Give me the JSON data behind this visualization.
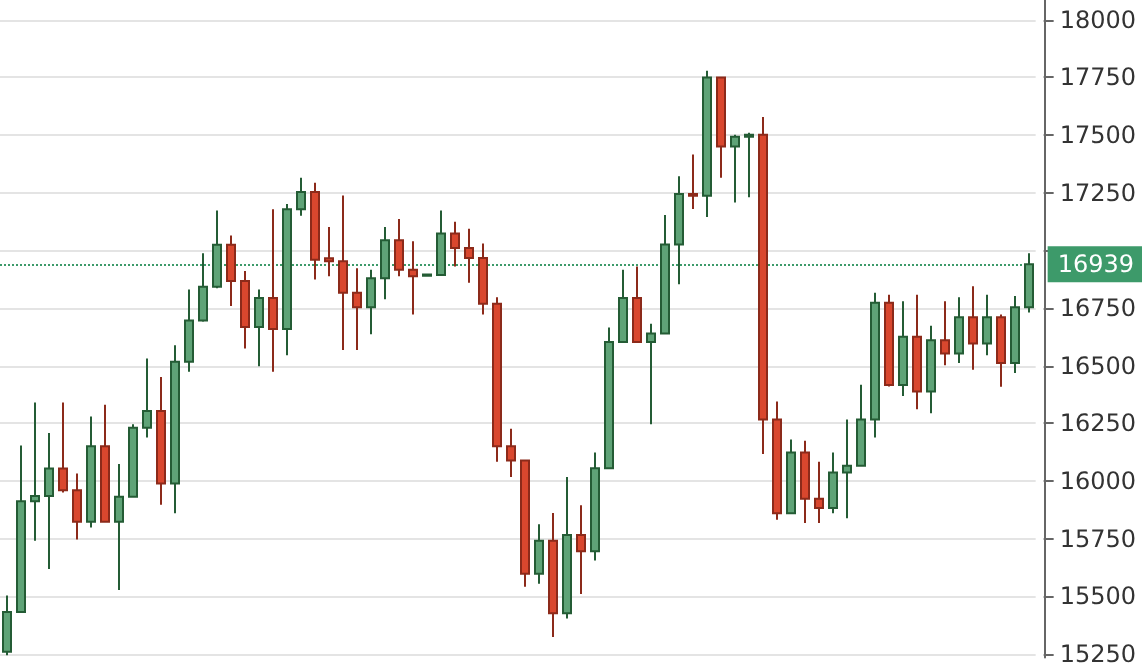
{
  "chart_data": {
    "type": "candlestick",
    "categories": [
      null,
      null,
      null,
      null,
      null,
      null,
      null,
      null,
      null,
      null,
      null,
      null,
      null,
      null,
      null,
      null,
      null,
      null,
      null,
      null,
      null,
      null,
      null,
      null,
      null,
      null,
      null,
      null,
      null,
      null,
      null,
      null,
      null,
      null,
      null,
      null,
      null,
      null,
      null,
      null,
      null,
      null,
      null,
      null,
      null,
      null,
      null,
      null,
      null,
      null,
      null,
      null,
      null,
      null,
      null,
      null,
      null,
      null,
      null,
      null,
      null,
      null,
      null,
      null,
      null,
      null,
      null,
      null,
      null,
      null,
      null,
      null,
      null,
      null
    ],
    "ohlc": [
      [
        15260,
        15504,
        15245,
        15432
      ],
      [
        15432,
        16154,
        15432,
        15912
      ],
      [
        15912,
        16340,
        15741,
        15935
      ],
      [
        15935,
        16208,
        15618,
        16054
      ],
      [
        16054,
        16340,
        15950,
        15960
      ],
      [
        15960,
        16032,
        15746,
        15823
      ],
      [
        15823,
        16280,
        15798,
        16151
      ],
      [
        16151,
        16331,
        15823,
        15823
      ],
      [
        15823,
        16074,
        15527,
        15932
      ],
      [
        15932,
        16246,
        15932,
        16231
      ],
      [
        16231,
        16531,
        16188,
        16303
      ],
      [
        16303,
        16451,
        15897,
        15989
      ],
      [
        15989,
        16588,
        15860,
        16517
      ],
      [
        16517,
        16830,
        16474,
        16696
      ],
      [
        16696,
        16987,
        16690,
        16842
      ],
      [
        16842,
        17173,
        16835,
        17024
      ],
      [
        17024,
        17064,
        16759,
        16867
      ],
      [
        16867,
        16910,
        16574,
        16668
      ],
      [
        16668,
        16830,
        16497,
        16793
      ],
      [
        16793,
        17178,
        16474,
        16659
      ],
      [
        16659,
        17201,
        16545,
        17178
      ],
      [
        17178,
        17315,
        17150,
        17253
      ],
      [
        17253,
        17293,
        16873,
        16959
      ],
      [
        16965,
        17101,
        16888,
        16953
      ],
      [
        16953,
        17238,
        16568,
        16816
      ],
      [
        16816,
        16922,
        16568,
        16753
      ],
      [
        16753,
        16916,
        16636,
        16879
      ],
      [
        16879,
        17101,
        16788,
        17044
      ],
      [
        17044,
        17136,
        16888,
        16916
      ],
      [
        16916,
        17039,
        16722,
        16888
      ],
      [
        16890,
        16897,
        16888,
        16895
      ],
      [
        16893,
        17173,
        16890,
        17073
      ],
      [
        17073,
        17124,
        16930,
        17010
      ],
      [
        17010,
        17093,
        16859,
        16967
      ],
      [
        16967,
        17030,
        16722,
        16768
      ],
      [
        16768,
        16796,
        16083,
        16151
      ],
      [
        16151,
        16226,
        16017,
        16089
      ],
      [
        16089,
        16089,
        15541,
        15598
      ],
      [
        15598,
        15812,
        15555,
        15741
      ],
      [
        15741,
        15861,
        15324,
        15427
      ],
      [
        15427,
        16017,
        15404,
        15766
      ],
      [
        15766,
        15895,
        15510,
        15695
      ],
      [
        15695,
        16123,
        15655,
        16055
      ],
      [
        16055,
        16665,
        16055,
        16602
      ],
      [
        16602,
        16916,
        16602,
        16793
      ],
      [
        16793,
        16930,
        16602,
        16602
      ],
      [
        16602,
        16682,
        16246,
        16639
      ],
      [
        16639,
        17153,
        16636,
        17025
      ],
      [
        17025,
        17321,
        16853,
        17244
      ],
      [
        17244,
        17415,
        17179,
        17236
      ],
      [
        17236,
        17778,
        17144,
        17749
      ],
      [
        17749,
        17749,
        17315,
        17450
      ],
      [
        17450,
        17501,
        17207,
        17492
      ],
      [
        17492,
        17510,
        17230,
        17501
      ],
      [
        17501,
        17578,
        16117,
        16266
      ],
      [
        16266,
        16345,
        15832,
        15860
      ],
      [
        15860,
        16180,
        15860,
        16123
      ],
      [
        16123,
        16174,
        15818,
        15923
      ],
      [
        15923,
        16083,
        15818,
        15883
      ],
      [
        15883,
        16123,
        15860,
        16037
      ],
      [
        16037,
        16266,
        15838,
        16066
      ],
      [
        16066,
        16417,
        16066,
        16266
      ],
      [
        16266,
        16816,
        16189,
        16773
      ],
      [
        16773,
        16807,
        16410,
        16416
      ],
      [
        16416,
        16779,
        16368,
        16625
      ],
      [
        16625,
        16807,
        16311,
        16388
      ],
      [
        16388,
        16673,
        16294,
        16610
      ],
      [
        16610,
        16779,
        16502,
        16553
      ],
      [
        16553,
        16796,
        16511,
        16710
      ],
      [
        16710,
        16844,
        16482,
        16596
      ],
      [
        16596,
        16807,
        16545,
        16710
      ],
      [
        16710,
        16722,
        16408,
        16511
      ],
      [
        16511,
        16802,
        16468,
        16753
      ],
      [
        16753,
        16987,
        16730,
        16939
      ]
    ],
    "ylim": [
      15235,
      18085
    ],
    "yticks": [
      15250,
      15500,
      15750,
      16000,
      16250,
      16500,
      16750,
      {
        "value": 17000,
        "label": null
      },
      17250,
      17500,
      17750,
      18000
    ],
    "grid": "y",
    "tick_labels": "y",
    "ref_lines": [
      {
        "axis": "y",
        "value": 16939,
        "label": "16939",
        "color": "#3d9a6a",
        "line_style": "dotted"
      }
    ]
  }
}
